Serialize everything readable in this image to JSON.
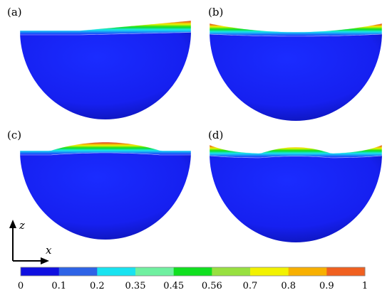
{
  "panels": [
    {
      "label": "(a)",
      "mode": "a"
    },
    {
      "label": "(b)",
      "mode": "b"
    },
    {
      "label": "(c)",
      "mode": "c"
    },
    {
      "label": "(d)",
      "mode": "d"
    }
  ],
  "axes": {
    "z_label": "z",
    "x_label": "x"
  },
  "colorbar": {
    "ticks": [
      "0",
      "0.1",
      "0.2",
      "0.35",
      "0.45",
      "0.56",
      "0.7",
      "0.8",
      "0.9",
      "1"
    ],
    "colors": [
      "#1010e0",
      "#2e63e6",
      "#19e3f0",
      "#70f0a0",
      "#10e020",
      "#98e040",
      "#f2f200",
      "#f8b000",
      "#f06020"
    ]
  },
  "colors": {
    "body": "#1a24ff",
    "body_edge": "#101a9a"
  }
}
